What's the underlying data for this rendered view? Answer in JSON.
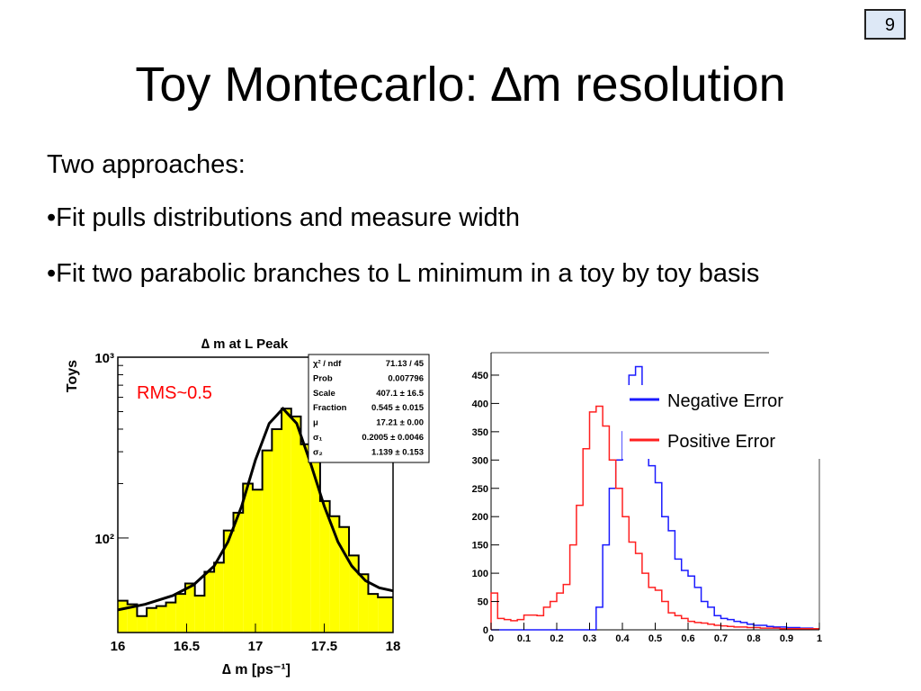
{
  "slide": {
    "page_number": "9",
    "title": "Toy Montecarlo: ∆m resolution",
    "bullets": [
      "Two approaches:",
      "•Fit pulls distributions and measure width",
      "•Fit two parabolic branches to L minimum in a toy by toy basis"
    ]
  },
  "colors": {
    "fill": "#ffff00",
    "negative": "#1a1aff",
    "positive": "#ff2020",
    "fit": "#000000",
    "rms_text": "#ff0000",
    "badge_bg": "#dde8f6"
  },
  "chart_data": [
    {
      "type": "bar",
      "title": "∆ m at L Peak",
      "xlabel": "∆ m [ps⁻¹]",
      "ylabel": "Toys",
      "xlim": [
        16,
        18
      ],
      "ylim": [
        30,
        1000
      ],
      "yscale": "log",
      "x_ticks": [
        "16",
        "16.5",
        "17",
        "17.5",
        "18"
      ],
      "y_ticks": [
        {
          "value": 100,
          "label": "10²"
        },
        {
          "value": 1000,
          "label": "10³"
        }
      ],
      "annotation": "RMS~0.5",
      "bin_edges": [
        16.0,
        16.07,
        16.14,
        16.21,
        16.28,
        16.35,
        16.42,
        16.49,
        16.56,
        16.63,
        16.7,
        16.77,
        16.84,
        16.91,
        16.98,
        17.05,
        17.12,
        17.19,
        17.26,
        17.33,
        17.4,
        17.47,
        17.54,
        17.61,
        17.68,
        17.75,
        17.82,
        17.89,
        18.0
      ],
      "values": [
        45,
        43,
        37,
        41,
        42,
        44,
        49,
        56,
        48,
        65,
        73,
        110,
        138,
        200,
        185,
        305,
        400,
        520,
        470,
        330,
        290,
        160,
        132,
        115,
        80,
        63,
        49,
        47
      ],
      "fit": {
        "x": [
          16.0,
          16.2,
          16.4,
          16.55,
          16.7,
          16.8,
          16.9,
          17.0,
          17.1,
          17.2,
          17.3,
          17.4,
          17.5,
          17.6,
          17.7,
          17.8,
          17.9,
          18.0
        ],
        "y": [
          40,
          43,
          48,
          55,
          70,
          95,
          150,
          270,
          430,
          520,
          430,
          260,
          150,
          95,
          70,
          58,
          53,
          51
        ]
      },
      "stats_box": [
        {
          "label": "χ² / ndf",
          "value": "71.13 / 45"
        },
        {
          "label": "Prob",
          "value": "0.007796"
        },
        {
          "label": "Scale",
          "value": "407.1 ± 16.5"
        },
        {
          "label": "Fraction",
          "value": "0.545 ± 0.015"
        },
        {
          "label": "μ",
          "value": "17.21 ± 0.00"
        },
        {
          "label": "σ₁",
          "value": "0.2005 ± 0.0046"
        },
        {
          "label": "σ₂",
          "value": "1.139 ± 0.153"
        }
      ]
    },
    {
      "type": "line",
      "step": true,
      "xlim": [
        0,
        1
      ],
      "ylim": [
        0,
        480
      ],
      "x_ticks": [
        "0",
        "0.1",
        "0.2",
        "0.3",
        "0.4",
        "0.5",
        "0.6",
        "0.7",
        "0.8",
        "0.9",
        "1"
      ],
      "y_ticks": [
        "0",
        "50",
        "100",
        "150",
        "200",
        "250",
        "300",
        "350",
        "400",
        "450"
      ],
      "bin_width": 0.02,
      "series": [
        {
          "name": "Negative Error",
          "color": "#1a1aff",
          "values": [
            0,
            0,
            0,
            0,
            0,
            0,
            0,
            0,
            0,
            0,
            0,
            0,
            0,
            0,
            0,
            0,
            40,
            150,
            250,
            300,
            350,
            450,
            465,
            400,
            290,
            260,
            200,
            175,
            125,
            105,
            95,
            75,
            50,
            40,
            25,
            20,
            18,
            15,
            13,
            10,
            8,
            8,
            6,
            5,
            5,
            4,
            4,
            3,
            3,
            2
          ]
        },
        {
          "name": "Positive Error",
          "color": "#ff2020",
          "values": [
            65,
            20,
            18,
            16,
            18,
            26,
            26,
            25,
            40,
            50,
            65,
            80,
            150,
            220,
            320,
            385,
            395,
            360,
            300,
            250,
            200,
            155,
            135,
            100,
            75,
            70,
            50,
            30,
            25,
            20,
            15,
            13,
            12,
            10,
            8,
            7,
            6,
            5,
            5,
            4,
            4,
            3,
            3,
            3,
            2,
            2,
            2,
            2,
            2,
            2
          ]
        }
      ]
    }
  ]
}
